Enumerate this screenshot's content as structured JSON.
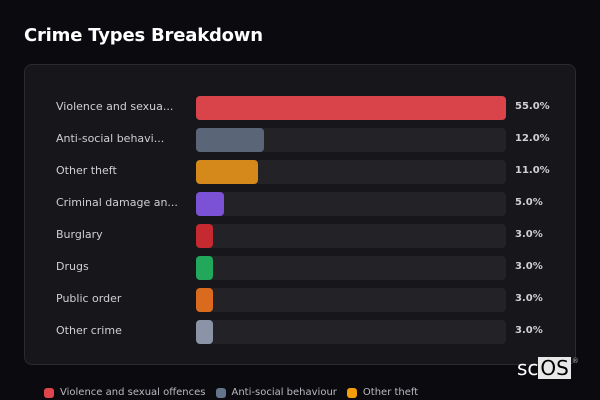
{
  "header": {
    "title": "Crime Types Breakdown"
  },
  "chart_data": {
    "type": "bar",
    "orientation": "horizontal",
    "title": "Crime Types Breakdown",
    "categories": [
      "Violence and sexual offences",
      "Anti-social behaviour",
      "Other theft",
      "Criminal damage and arson",
      "Burglary",
      "Drugs",
      "Public order",
      "Other crime"
    ],
    "display_labels": [
      "Violence and sexua...",
      "Anti-social behavi...",
      "Other theft",
      "Criminal damage an...",
      "Burglary",
      "Drugs",
      "Public order",
      "Other crime"
    ],
    "values": [
      55.0,
      12.0,
      11.0,
      5.0,
      3.0,
      3.0,
      3.0,
      3.0
    ],
    "value_labels": [
      "55.0%",
      "12.0%",
      "11.0%",
      "5.0%",
      "3.0%",
      "3.0%",
      "3.0%",
      "3.0%"
    ],
    "colors": [
      "#d9434a",
      "#5b6578",
      "#d4891a",
      "#7b52d6",
      "#c42a2f",
      "#22a85a",
      "#d96a1e",
      "#8a94a6"
    ],
    "xlabel": "",
    "ylabel": "",
    "scale_max": 55.0,
    "grid": false,
    "legend_position": "bottom",
    "legend": [
      {
        "label": "Violence and sexual offences",
        "color": "#e0444c"
      },
      {
        "label": "Anti-social behaviour",
        "color": "#64748b"
      },
      {
        "label": "Other theft",
        "color": "#f59e0b"
      }
    ]
  },
  "watermark": {
    "prefix": "sc",
    "highlight": "OS",
    "mark": "®"
  }
}
